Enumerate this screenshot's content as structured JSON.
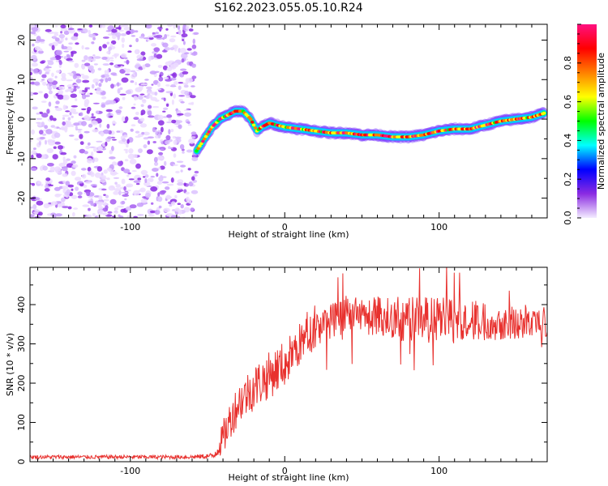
{
  "figure": {
    "title": "S162.2023.055.05.10.R24"
  },
  "chart_data": [
    {
      "type": "heatmap",
      "xlabel": "Height of straight line (km)",
      "ylabel": "Frequency (Hz)",
      "xlim": [
        -165,
        170
      ],
      "ylim": [
        -25,
        24
      ],
      "xticks": [
        -100,
        0,
        100
      ],
      "yticks": [
        -20,
        -10,
        0,
        10,
        20
      ],
      "colorbar": {
        "label": "Normalized spectral amplitude",
        "range": [
          0.0,
          1.0
        ],
        "ticks": [
          0.0,
          0.2,
          0.4,
          0.6,
          0.8
        ],
        "colors": [
          "#f4ecff",
          "#8a2be2",
          "#0000ff",
          "#00ffff",
          "#00ff00",
          "#ffff00",
          "#ff8000",
          "#ff0000",
          "#ff1080"
        ]
      },
      "noise_region_x": [
        -165,
        -57
      ],
      "ridge": {
        "x": [
          -57,
          -52,
          -47,
          -42,
          -37,
          -32,
          -27,
          -22,
          -18,
          -15,
          -10,
          -5,
          0,
          10,
          20,
          30,
          40,
          50,
          60,
          70,
          80,
          90,
          100,
          110,
          120,
          130,
          140,
          150,
          160,
          168
        ],
        "frequency": [
          -8,
          -5,
          -2,
          0,
          1,
          2,
          2,
          0,
          -3,
          -2,
          -1,
          -1.5,
          -2,
          -2.5,
          -3,
          -3.5,
          -3.5,
          -4,
          -4,
          -4.5,
          -4.5,
          -4,
          -3,
          -2.5,
          -2.5,
          -1.5,
          -0.5,
          0,
          0.5,
          1.5
        ]
      }
    },
    {
      "type": "line",
      "xlabel": "Height of straight line (km)",
      "ylabel": "SNR (10 * v/v)",
      "xlim": [
        -165,
        170
      ],
      "ylim": [
        0,
        495
      ],
      "xticks": [
        -100,
        0,
        100
      ],
      "yticks": [
        0,
        100,
        200,
        300,
        400
      ],
      "color": "#e8312e",
      "envelope": {
        "x": [
          -165,
          -120,
          -60,
          -46,
          -40,
          -35,
          -30,
          -20,
          -10,
          0,
          10,
          20,
          30,
          40,
          60,
          80,
          100,
          120,
          140,
          160,
          170
        ],
        "mean": [
          12,
          12,
          12,
          15,
          60,
          110,
          150,
          190,
          220,
          250,
          300,
          340,
          360,
          370,
          370,
          365,
          360,
          360,
          355,
          355,
          355
        ],
        "spread": [
          5,
          5,
          5,
          8,
          45,
          50,
          55,
          60,
          60,
          60,
          55,
          50,
          45,
          45,
          55,
          60,
          60,
          55,
          45,
          40,
          40
        ]
      }
    }
  ]
}
